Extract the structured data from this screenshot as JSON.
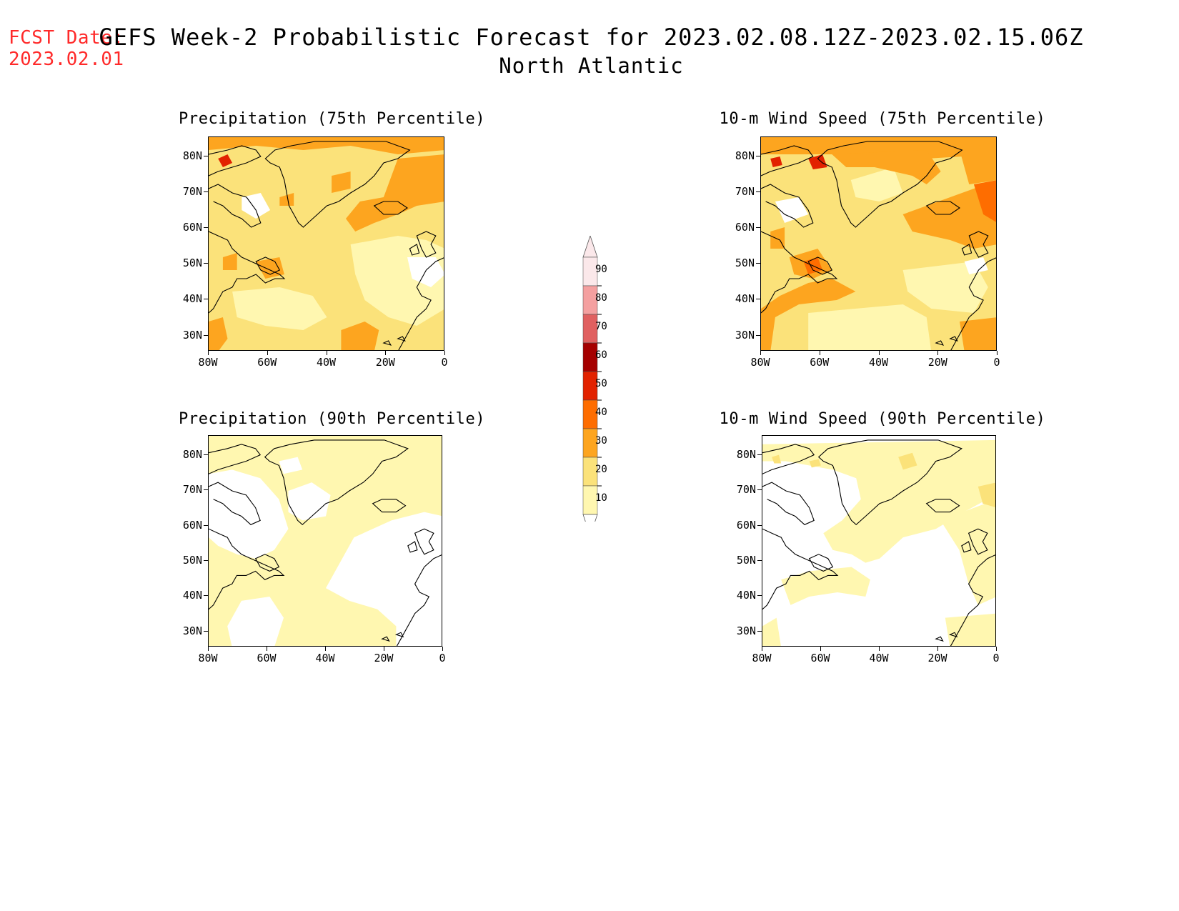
{
  "fcst_date": {
    "label": "FCST Date:",
    "value": "2023.02.01"
  },
  "title": {
    "main": "GEFS Week-2 Probabilistic Forecast for 2023.02.08.12Z-2023.02.15.06Z",
    "region": "North Atlantic"
  },
  "colors": {
    "coast": "#000000",
    "levels": [
      "#ffffff",
      "#fff7b0",
      "#fbe27a",
      "#fda51f",
      "#fe6d00",
      "#e22200",
      "#a50000",
      "#e06060",
      "#f4a0a0",
      "#fbe8ea"
    ]
  },
  "axes": {
    "lat_ticks": [
      "80N",
      "70N",
      "60N",
      "50N",
      "40N",
      "30N"
    ],
    "lon_ticks": [
      "80W",
      "60W",
      "40W",
      "20W",
      "0"
    ]
  },
  "panels": [
    {
      "id": "precip75",
      "title": "Precipitation (75th Percentile)",
      "intensity": "high",
      "variable": "precip"
    },
    {
      "id": "wind75",
      "title": "10-m Wind Speed (75th Percentile)",
      "intensity": "high",
      "variable": "wind"
    },
    {
      "id": "precip90",
      "title": "Precipitation (90th Percentile)",
      "intensity": "low",
      "variable": "precip"
    },
    {
      "id": "wind90",
      "title": "10-m Wind Speed (90th Percentile)",
      "intensity": "low",
      "variable": "wind"
    }
  ],
  "colorbar": {
    "labels": [
      "90",
      "80",
      "70",
      "60",
      "50",
      "40",
      "30",
      "20",
      "10"
    ],
    "colors": [
      "#fbe8ea",
      "#f4a0a0",
      "#e06060",
      "#a50000",
      "#e22200",
      "#fe6d00",
      "#fda51f",
      "#fbe27a",
      "#fff7b0"
    ]
  }
}
